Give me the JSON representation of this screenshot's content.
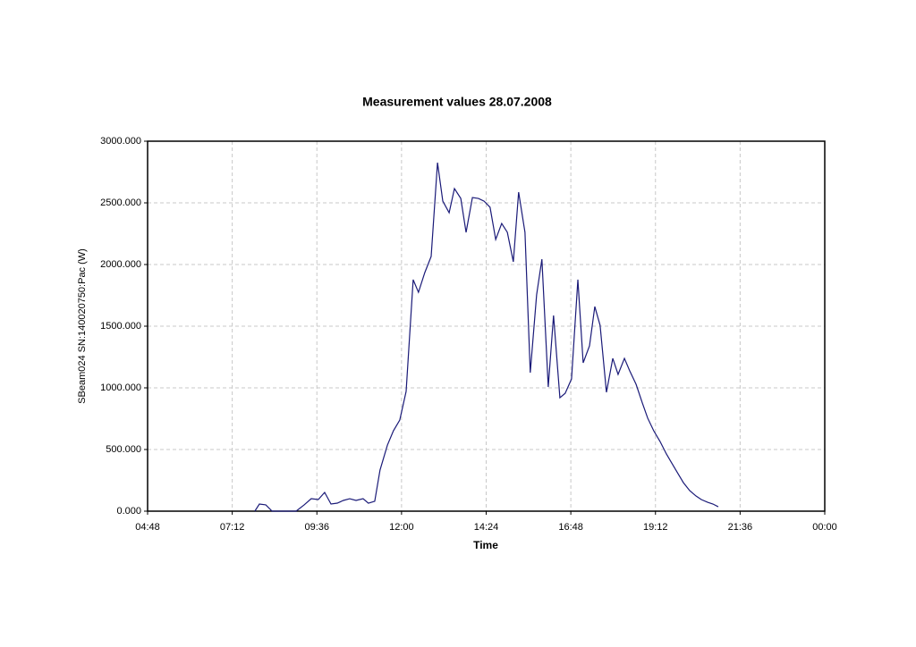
{
  "chart_data": {
    "type": "line",
    "title": "Measurement values 28.07.2008",
    "x_label": "Time",
    "y_label": "SBeam024 SN:140020750:Pac (W)",
    "color": "#1a1a78",
    "grid": true,
    "x": [
      7.84,
      7.97,
      8.15,
      8.33,
      9.01,
      9.24,
      9.44,
      9.64,
      9.82,
      10.0,
      10.18,
      10.35,
      10.53,
      10.71,
      10.91,
      11.06,
      11.24,
      11.39,
      11.6,
      11.77,
      11.95,
      12.13,
      12.33,
      12.48,
      12.66,
      12.84,
      13.02,
      13.17,
      13.35,
      13.5,
      13.68,
      13.83,
      14.01,
      14.18,
      14.34,
      14.51,
      14.67,
      14.84,
      15.0,
      15.17,
      15.32,
      15.5,
      15.65,
      15.83,
      15.98,
      16.16,
      16.31,
      16.49,
      16.64,
      16.82,
      17.0,
      17.15,
      17.33,
      17.48,
      17.63,
      17.81,
      17.99,
      18.14,
      18.32,
      18.47,
      18.65,
      18.82,
      18.98,
      19.15,
      19.33,
      19.51,
      19.66,
      19.84,
      19.99,
      20.17,
      20.35,
      20.5,
      20.68,
      20.83,
      20.98
    ],
    "values": [
      0,
      58,
      51,
      0,
      0,
      51,
      101,
      94,
      152,
      58,
      65,
      87,
      101,
      87,
      101,
      65,
      80,
      333,
      536,
      652,
      739,
      971,
      1877,
      1775,
      1935,
      2065,
      2826,
      2514,
      2420,
      2616,
      2536,
      2261,
      2543,
      2536,
      2514,
      2464,
      2203,
      2333,
      2261,
      2022,
      2587,
      2261,
      1123,
      1754,
      2043,
      1007,
      1587,
      920,
      956,
      1072,
      1877,
      1203,
      1341,
      1659,
      1507,
      964,
      1239,
      1109,
      1239,
      1138,
      1029,
      884,
      754,
      652,
      565,
      464,
      391,
      304,
      232,
      167,
      123,
      94,
      72,
      58,
      36
    ],
    "xlim": [
      4.8,
      24
    ],
    "xticks": [
      {
        "value": 4.8,
        "label": "04:48"
      },
      {
        "value": 7.2,
        "label": "07:12"
      },
      {
        "value": 9.6,
        "label": "09:36"
      },
      {
        "value": 12,
        "label": "12:00"
      },
      {
        "value": 14.4,
        "label": "14:24"
      },
      {
        "value": 16.8,
        "label": "16:48"
      },
      {
        "value": 19.2,
        "label": "19:12"
      },
      {
        "value": 21.6,
        "label": "21:36"
      },
      {
        "value": 24,
        "label": "00:00"
      }
    ],
    "ylim": [
      0,
      3000
    ],
    "yticks": [
      {
        "value": 0,
        "label": "0.000"
      },
      {
        "value": 500,
        "label": "500.000"
      },
      {
        "value": 1000,
        "label": "1000.000"
      },
      {
        "value": 1500,
        "label": "1500.000"
      },
      {
        "value": 2000,
        "label": "2000.000"
      },
      {
        "value": 2500,
        "label": "2500.000"
      },
      {
        "value": 3000,
        "label": "3000.000"
      }
    ]
  }
}
